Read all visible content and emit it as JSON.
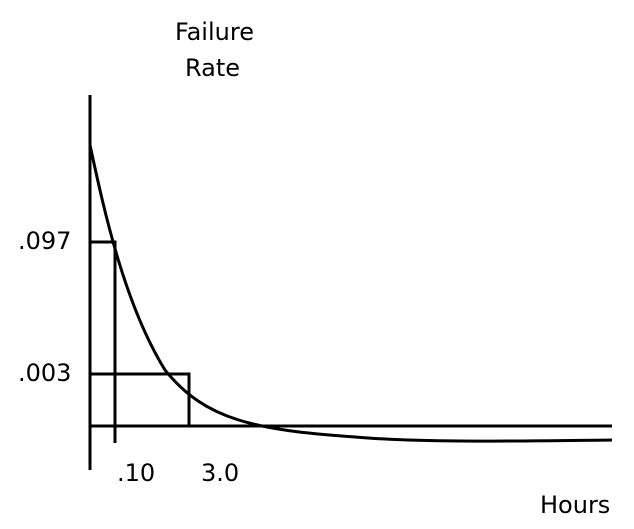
{
  "diagram": {
    "y_label_line1": "Failure",
    "y_label_line2": "Rate",
    "x_label": "Hours",
    "y_ticks": [
      ".097",
      ".003"
    ],
    "x_ticks": [
      ".10",
      "3.0"
    ],
    "line_color": "#000000"
  }
}
